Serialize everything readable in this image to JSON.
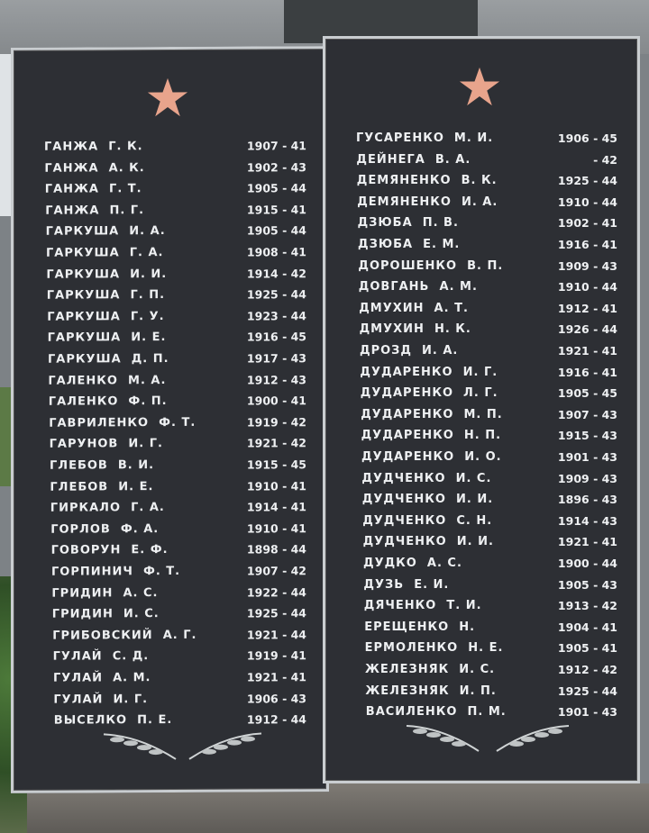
{
  "colors": {
    "plaque": "#2d2f34",
    "text": "#eef0f2",
    "star": "#e8a48c",
    "frame": "#c9cdd0"
  },
  "icons": {
    "star": "red-star-icon",
    "laurel": "laurel-branch-icon"
  },
  "left_plaque": {
    "entries": [
      {
        "name": "ГАНЖА  Г. К.",
        "years": "1907 - 41"
      },
      {
        "name": "ГАНЖА  А. К.",
        "years": "1902 - 43"
      },
      {
        "name": "ГАНЖА  Г. Т.",
        "years": "1905 - 44"
      },
      {
        "name": "ГАНЖА  П. Г.",
        "years": "1915 - 41"
      },
      {
        "name": "ГАРКУША  И. А.",
        "years": "1905 - 44"
      },
      {
        "name": "ГАРКУША  Г. А.",
        "years": "1908 - 41"
      },
      {
        "name": "ГАРКУША  И. И.",
        "years": "1914 - 42"
      },
      {
        "name": "ГАРКУША  Г. П.",
        "years": "1925 - 44"
      },
      {
        "name": "ГАРКУША  Г. У.",
        "years": "1923 - 44"
      },
      {
        "name": "ГАРКУША  И. Е.",
        "years": "1916 - 45"
      },
      {
        "name": "ГАРКУША  Д. П.",
        "years": "1917 - 43"
      },
      {
        "name": "ГАЛЕНКО  М. А.",
        "years": "1912 - 43"
      },
      {
        "name": "ГАЛЕНКО  Ф. П.",
        "years": "1900 - 41"
      },
      {
        "name": "ГАВРИЛЕНКО  Ф. Т.",
        "years": "1919 - 42"
      },
      {
        "name": "ГАРУНОВ  И. Г.",
        "years": "1921 - 42"
      },
      {
        "name": "ГЛЕБОВ  В. И.",
        "years": "1915 - 45"
      },
      {
        "name": "ГЛЕБОВ  И. Е.",
        "years": "1910 - 41"
      },
      {
        "name": "ГИРКАЛО  Г. А.",
        "years": "1914 - 41"
      },
      {
        "name": "ГОРЛОВ  Ф. А.",
        "years": "1910 - 41"
      },
      {
        "name": "ГОВОРУН  Е. Ф.",
        "years": "1898 - 44"
      },
      {
        "name": "ГОРПИНИЧ  Ф. Т.",
        "years": "1907 - 42"
      },
      {
        "name": "ГРИДИН  А. С.",
        "years": "1922 - 44"
      },
      {
        "name": "ГРИДИН  И. С.",
        "years": "1925 - 44"
      },
      {
        "name": "ГРИБОВСКИЙ  А. Г.",
        "years": "1921 - 44"
      },
      {
        "name": "ГУЛАЙ  С. Д.",
        "years": "1919 - 41"
      },
      {
        "name": "ГУЛАЙ  А. М.",
        "years": "1921 - 41"
      },
      {
        "name": "ГУЛАЙ  И. Г.",
        "years": "1906 - 43"
      },
      {
        "name": "ВЫСЕЛКО  П. Е.",
        "years": "1912 - 44"
      }
    ]
  },
  "right_plaque": {
    "entries": [
      {
        "name": "ГУСАРЕНКО  М. И.",
        "years": "1906 - 45"
      },
      {
        "name": "ДЕЙНЕГА  В. А.",
        "years": "- 42"
      },
      {
        "name": "ДЕМЯНЕНКО  В. К.",
        "years": "1925 - 44"
      },
      {
        "name": "ДЕМЯНЕНКО  И. А.",
        "years": "1910 - 44"
      },
      {
        "name": "ДЗЮБА  П. В.",
        "years": "1902 - 41"
      },
      {
        "name": "ДЗЮБА  Е. М.",
        "years": "1916 - 41"
      },
      {
        "name": "ДОРОШЕНКО  В. П.",
        "years": "1909 - 43"
      },
      {
        "name": "ДОВГАНЬ  А. М.",
        "years": "1910 - 44"
      },
      {
        "name": "ДМУХИН  А. Т.",
        "years": "1912 - 41"
      },
      {
        "name": "ДМУХИН  Н. К.",
        "years": "1926 - 44"
      },
      {
        "name": "ДРОЗД  И. А.",
        "years": "1921 - 41"
      },
      {
        "name": "ДУДАРЕНКО  И. Г.",
        "years": "1916 - 41"
      },
      {
        "name": "ДУДАРЕНКО  Л. Г.",
        "years": "1905 - 45"
      },
      {
        "name": "ДУДАРЕНКО  М. П.",
        "years": "1907 - 43"
      },
      {
        "name": "ДУДАРЕНКО  Н. П.",
        "years": "1915 - 43"
      },
      {
        "name": "ДУДАРЕНКО  И. О.",
        "years": "1901 - 43"
      },
      {
        "name": "ДУДЧЕНКО  И. С.",
        "years": "1909 - 43"
      },
      {
        "name": "ДУДЧЕНКО  И. И.",
        "years": "1896 - 43"
      },
      {
        "name": "ДУДЧЕНКО  С. Н.",
        "years": "1914 - 43"
      },
      {
        "name": "ДУДЧЕНКО  И. И.",
        "years": "1921 - 41"
      },
      {
        "name": "ДУДКО  А. С.",
        "years": "1900 - 44"
      },
      {
        "name": "ДУЗЬ  Е. И.",
        "years": "1905 - 43"
      },
      {
        "name": "ДЯЧЕНКО  Т. И.",
        "years": "1913 - 42"
      },
      {
        "name": "ЕРЕЩЕНКО  Н.",
        "years": "1904 - 41"
      },
      {
        "name": "ЕРМОЛЕНКО  Н. Е.",
        "years": "1905 - 41"
      },
      {
        "name": "ЖЕЛЕЗНЯК  И. С.",
        "years": "1912 - 42"
      },
      {
        "name": "ЖЕЛЕЗНЯК  И. П.",
        "years": "1925 - 44"
      },
      {
        "name": "ВАСИЛЕНКО  П. М.",
        "years": "1901 - 43"
      }
    ]
  }
}
